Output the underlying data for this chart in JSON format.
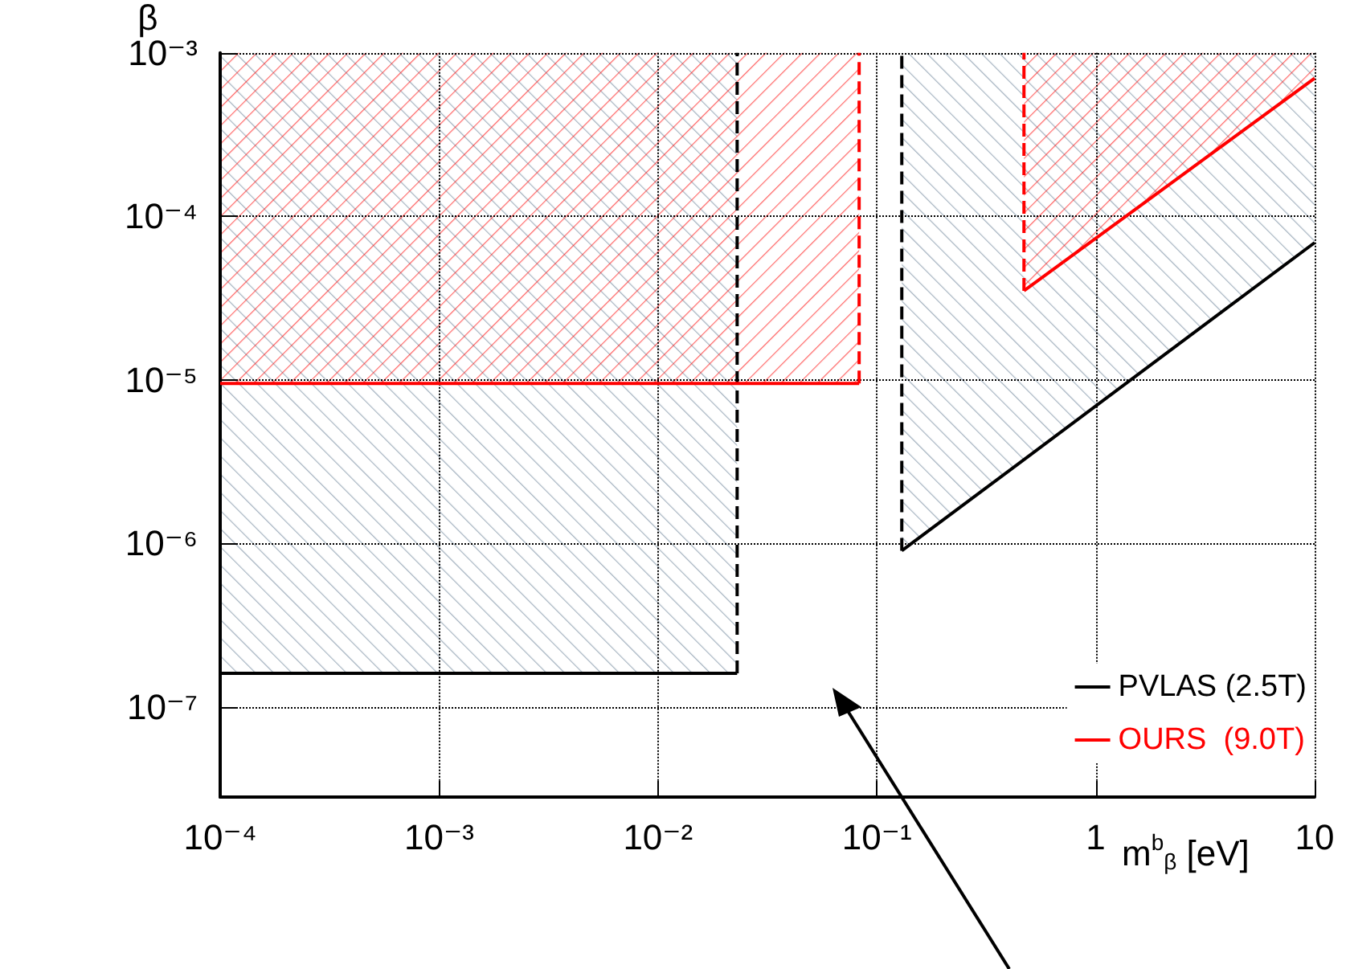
{
  "chart_data": {
    "type": "line",
    "xlabel": "m$^{b}$$_{β}$ [eV]",
    "ylabel": "β",
    "log": "xy",
    "grid": true,
    "legend": "bottom right",
    "xlim": [
      0.0001,
      10
    ],
    "ylim": [
      2.8e-08,
      0.001
    ],
    "xticks": [
      {
        "value": 0.0001,
        "label": "10⁻⁴"
      },
      {
        "value": 0.001,
        "label": "10⁻³"
      },
      {
        "value": 0.01,
        "label": "10⁻²"
      },
      {
        "value": 0.1,
        "label": "10⁻¹"
      },
      1,
      10
    ],
    "yticks": [
      {
        "value": 1e-07,
        "label": "10⁻⁷"
      },
      {
        "value": 1e-06,
        "label": "10⁻⁶"
      },
      {
        "value": 1e-05,
        "label": "10⁻⁵"
      },
      {
        "value": 0.0001,
        "label": "10⁻⁴"
      },
      {
        "value": 0.001,
        "label": "10⁻³"
      }
    ],
    "series": [
      {
        "type": "line",
        "name": "PVLAS (2.5T)",
        "color": "#000000",
        "x": [
          0.0001,
          0.023
        ],
        "values": [
          1.6e-07,
          1.6e-07
        ]
      },
      {
        "type": "line",
        "color": "#000000",
        "line_style": "dashed",
        "x": [
          0.023,
          0.023
        ],
        "values": [
          1.6e-07,
          0.001
        ]
      },
      {
        "type": "line",
        "color": "#000000",
        "x": [
          0.13,
          10
        ],
        "values": [
          9e-07,
          6.9e-05
        ]
      },
      {
        "type": "line",
        "color": "#000000",
        "line_style": "dashed",
        "x": [
          0.13,
          0.13
        ],
        "values": [
          9e-07,
          0.001
        ]
      },
      {
        "type": "line",
        "name": "OURS  (9.0T)",
        "color": "#ff0000",
        "x": [
          0.0001,
          0.083
        ],
        "values": [
          9.5e-06,
          9.5e-06
        ]
      },
      {
        "type": "line",
        "color": "#ff0000",
        "line_style": "dashed",
        "x": [
          0.083,
          0.083
        ],
        "values": [
          9.5e-06,
          0.001
        ]
      },
      {
        "type": "line",
        "color": "#ff0000",
        "x": [
          0.47,
          10
        ],
        "values": [
          3.5e-05,
          0.0007
        ]
      },
      {
        "type": "line",
        "color": "#ff0000",
        "line_style": "dashed",
        "x": [
          0.47,
          0.47
        ],
        "values": [
          3.5e-05,
          0.001
        ]
      }
    ]
  }
}
